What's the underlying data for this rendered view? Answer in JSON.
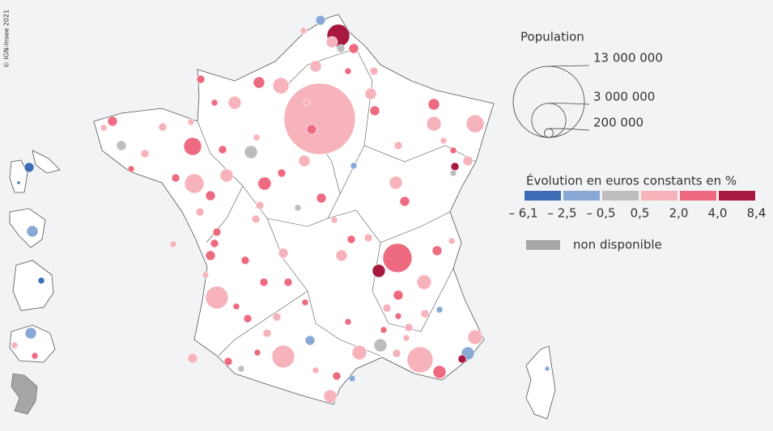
{
  "copyright": "© IGN-Insee 2021",
  "population_legend": {
    "title": "Population",
    "sizes": [
      {
        "value": 13000000,
        "label": "13 000 000"
      },
      {
        "value": 3000000,
        "label": "3 000 000"
      },
      {
        "value": 200000,
        "label": "200 000"
      }
    ]
  },
  "color_legend": {
    "title": "Évolution en euros constants en %",
    "breaks": [
      {
        "value": -6.1,
        "label": "– 6,1"
      },
      {
        "value": -2.5,
        "label": "– 2,5"
      },
      {
        "value": -0.5,
        "label": "– 0,5"
      },
      {
        "value": 0.5,
        "label": "0,5"
      },
      {
        "value": 2.0,
        "label": "2,0"
      },
      {
        "value": 4.0,
        "label": "4,0"
      },
      {
        "value": 8.4,
        "label": "8,4"
      }
    ],
    "colors": [
      "#3d6db5",
      "#8aa8d6",
      "#bdbdbf",
      "#f7b3bb",
      "#ee6a80",
      "#a8193f"
    ],
    "missing": {
      "label": "non disponible",
      "color": "#a6a6a6"
    }
  }
}
